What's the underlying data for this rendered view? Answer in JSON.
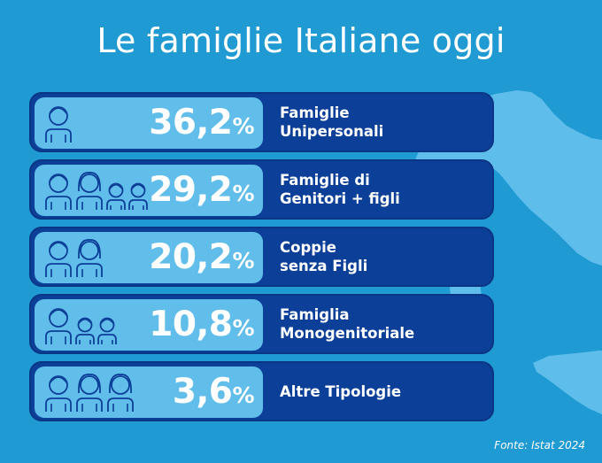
{
  "title": "Le famiglie Italiane oggi",
  "source": "Fonte: Istat 2024",
  "colors": {
    "background": "#1f9ad3",
    "row": "#0c3f97",
    "pill": "#61bdea",
    "map": "#5ebdea",
    "text": "#ffffff",
    "icon_stroke": "#0c3f97"
  },
  "chart_data": {
    "type": "bar",
    "title": "Le famiglie Italiane oggi",
    "unit": "%",
    "categories": [
      "Famiglie\nUnipersonali",
      "Famiglie di\nGenitori + figli",
      "Coppie\nsenza Figli",
      "Famiglia\nMonogenitoriale",
      "Altre Tipologie"
    ],
    "values": [
      36.2,
      29.2,
      20.2,
      10.8,
      3.6
    ],
    "value_labels": [
      "36,2",
      "29,2",
      "20,2",
      "10,8",
      "3,6"
    ],
    "icons": [
      [
        "adult-icon"
      ],
      [
        "adult-icon",
        "adult-female-icon",
        "child-icon",
        "child-icon"
      ],
      [
        "adult-icon",
        "adult-female-icon"
      ],
      [
        "adult-icon",
        "child-icon",
        "child-icon"
      ],
      [
        "adult-icon",
        "adult-female-icon",
        "adult-female-icon"
      ]
    ]
  }
}
